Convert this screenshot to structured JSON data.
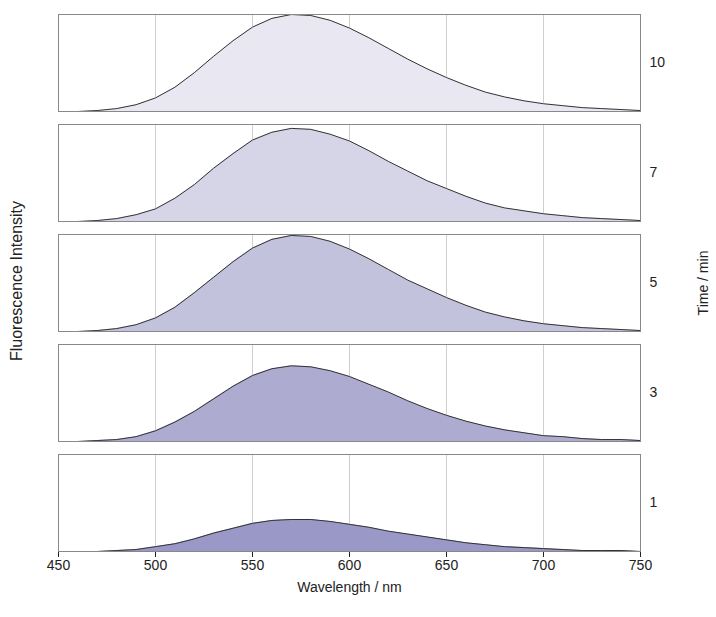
{
  "chart_data": {
    "type": "area",
    "x_label": "Wavelength / nm",
    "y_label": "Fluorescence Intensity",
    "facet_label": "Time / min",
    "x": [
      450,
      460,
      470,
      480,
      490,
      500,
      510,
      520,
      530,
      540,
      550,
      560,
      570,
      580,
      590,
      600,
      610,
      620,
      630,
      640,
      650,
      660,
      670,
      680,
      690,
      700,
      710,
      720,
      730,
      740,
      750
    ],
    "series": [
      {
        "name": "10",
        "color": "#e8e7f2",
        "values": [
          0,
          0,
          0.01,
          0.03,
          0.07,
          0.14,
          0.25,
          0.4,
          0.57,
          0.73,
          0.87,
          0.96,
          1.0,
          0.99,
          0.94,
          0.86,
          0.76,
          0.65,
          0.54,
          0.44,
          0.35,
          0.27,
          0.2,
          0.15,
          0.11,
          0.08,
          0.06,
          0.04,
          0.03,
          0.02,
          0.01
        ]
      },
      {
        "name": "7",
        "color": "#d6d5e8",
        "values": [
          0,
          0,
          0.01,
          0.03,
          0.07,
          0.13,
          0.24,
          0.38,
          0.55,
          0.7,
          0.84,
          0.92,
          0.96,
          0.95,
          0.9,
          0.83,
          0.73,
          0.62,
          0.52,
          0.42,
          0.34,
          0.26,
          0.19,
          0.14,
          0.11,
          0.08,
          0.06,
          0.04,
          0.03,
          0.02,
          0.01
        ]
      },
      {
        "name": "5",
        "color": "#c3c2dd",
        "values": [
          0,
          0,
          0.01,
          0.03,
          0.07,
          0.14,
          0.25,
          0.4,
          0.56,
          0.72,
          0.86,
          0.95,
          0.99,
          0.98,
          0.93,
          0.85,
          0.75,
          0.64,
          0.53,
          0.44,
          0.35,
          0.27,
          0.2,
          0.15,
          0.11,
          0.08,
          0.06,
          0.04,
          0.03,
          0.02,
          0.01
        ]
      },
      {
        "name": "3",
        "color": "#adacd0",
        "values": [
          0,
          0,
          0.01,
          0.02,
          0.05,
          0.11,
          0.2,
          0.31,
          0.44,
          0.57,
          0.68,
          0.75,
          0.78,
          0.77,
          0.73,
          0.67,
          0.59,
          0.51,
          0.42,
          0.34,
          0.27,
          0.21,
          0.16,
          0.12,
          0.09,
          0.06,
          0.05,
          0.03,
          0.02,
          0.02,
          0.01
        ]
      },
      {
        "name": "1",
        "color": "#9998c6",
        "values": [
          0,
          0,
          0,
          0.01,
          0.02,
          0.05,
          0.08,
          0.13,
          0.19,
          0.24,
          0.29,
          0.32,
          0.33,
          0.33,
          0.31,
          0.28,
          0.25,
          0.21,
          0.18,
          0.15,
          0.12,
          0.09,
          0.07,
          0.05,
          0.04,
          0.03,
          0.02,
          0.01,
          0.01,
          0.01,
          0
        ]
      }
    ],
    "xlim": [
      450,
      750
    ],
    "xticks": [
      450,
      500,
      550,
      600,
      650,
      700,
      750
    ],
    "ylim": [
      0,
      1
    ],
    "tick_labels": "x",
    "grid": true
  }
}
